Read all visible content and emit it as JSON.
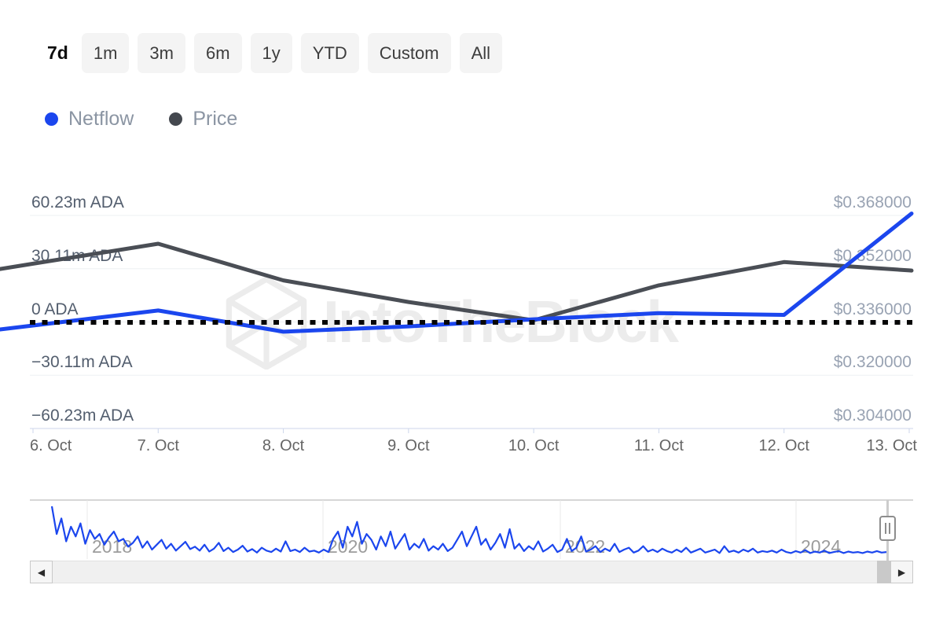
{
  "toolbar": {
    "selected": "7d",
    "items": [
      "7d",
      "1m",
      "3m",
      "6m",
      "1y",
      "YTD",
      "Custom",
      "All"
    ]
  },
  "legend": {
    "items": [
      {
        "label": "Netflow",
        "color": "#1b46ee"
      },
      {
        "label": "Price",
        "color": "#44484f"
      }
    ]
  },
  "watermark": {
    "text": "IntoTheBlock"
  },
  "scrollbar": {
    "left_arrow": "◀",
    "right_arrow": "▶"
  },
  "chart_data": {
    "type": "line",
    "title": "",
    "categories": [
      "6. Oct",
      "7. Oct",
      "8. Oct",
      "9. Oct",
      "10. Oct",
      "11. Oct",
      "12. Oct",
      "13. Oct"
    ],
    "series": [
      {
        "name": "Netflow",
        "axis": "left",
        "unit": "million ADA",
        "color": "#1b46ee",
        "values": [
          -2,
          6.5,
          -5.5,
          -2.5,
          1.5,
          5,
          4,
          60.23
        ]
      },
      {
        "name": "Price",
        "axis": "right",
        "unit": "USD",
        "color": "#4a4e55",
        "values": [
          0.3535,
          0.3595,
          0.3485,
          0.342,
          0.3365,
          0.347,
          0.354,
          0.3515
        ]
      }
    ],
    "y_axis_left": {
      "labels": [
        "60.23m ADA",
        "30.11m ADA",
        "0 ADA",
        "−30.11m ADA",
        "−60.23m ADA"
      ],
      "values": [
        60.23,
        30.11,
        0,
        -30.11,
        -60.23
      ],
      "max": 60.23,
      "min": -60.23,
      "zero_line_style": "dotted-black"
    },
    "y_axis_right": {
      "labels": [
        "$0.368000",
        "$0.352000",
        "$0.336000",
        "$0.320000",
        "$0.304000"
      ],
      "values": [
        0.368,
        0.352,
        0.336,
        0.32,
        0.304
      ],
      "max": 0.368,
      "min": 0.304
    },
    "grid": true,
    "legend_position": "top-left",
    "navigator": {
      "year_labels": [
        "2018",
        "2020",
        "2022",
        "2024"
      ],
      "spark_series": "Netflow history",
      "spark_color": "#1b46ee",
      "spark_values": [
        97,
        40,
        72,
        25,
        55,
        35,
        62,
        20,
        48,
        30,
        40,
        18,
        33,
        45,
        25,
        30,
        14,
        22,
        35,
        12,
        25,
        8,
        18,
        28,
        10,
        20,
        6,
        15,
        24,
        9,
        14,
        6,
        18,
        4,
        10,
        22,
        5,
        12,
        3,
        8,
        16,
        4,
        9,
        2,
        12,
        6,
        3,
        10,
        4,
        25,
        5,
        8,
        3,
        12,
        4,
        6,
        2,
        8,
        3,
        30,
        45,
        12,
        55,
        35,
        65,
        20,
        40,
        28,
        8,
        35,
        15,
        45,
        10,
        25,
        40,
        8,
        20,
        12,
        30,
        6,
        15,
        8,
        20,
        5,
        12,
        28,
        45,
        15,
        35,
        55,
        18,
        30,
        8,
        22,
        40,
        12,
        50,
        10,
        20,
        5,
        15,
        8,
        25,
        4,
        10,
        18,
        3,
        8,
        30,
        5,
        12,
        35,
        4,
        8,
        15,
        3,
        10,
        5,
        20,
        3,
        8,
        12,
        2,
        6,
        15,
        4,
        8,
        3,
        10,
        5,
        2,
        8,
        3,
        12,
        2,
        6,
        10,
        2,
        5,
        8,
        1,
        15,
        3,
        6,
        2,
        8,
        4,
        10,
        2,
        5,
        3,
        6,
        2,
        8,
        3,
        1,
        5,
        2,
        7,
        1,
        4,
        2,
        6,
        1,
        3,
        5,
        1,
        4,
        2,
        3,
        1,
        4,
        2,
        5,
        2,
        3
      ]
    }
  }
}
